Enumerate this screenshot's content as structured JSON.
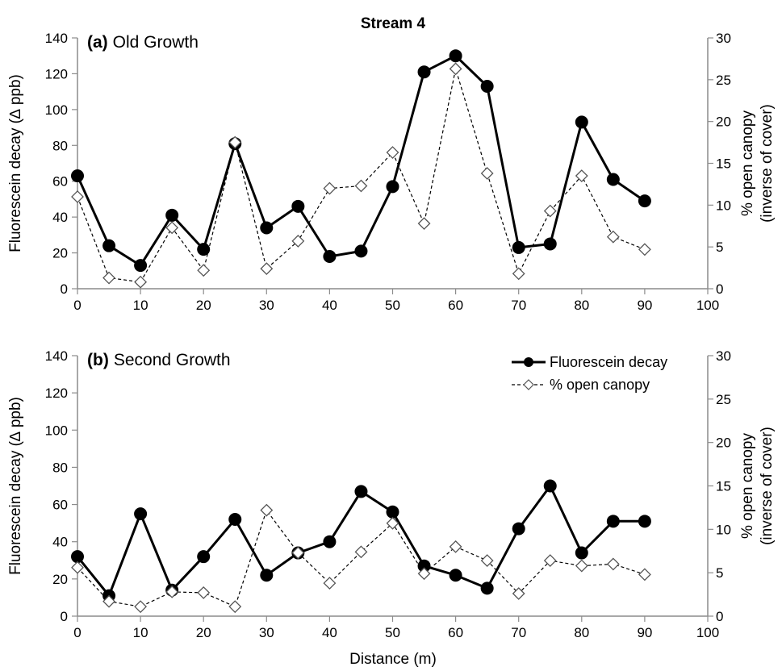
{
  "title": "Stream 4",
  "xlabel": "Distance (m)",
  "chart_data": [
    {
      "type": "line",
      "panel_letter": "(a)",
      "panel_title": "Old Growth",
      "x": [
        0,
        5,
        10,
        15,
        20,
        25,
        30,
        35,
        40,
        45,
        50,
        55,
        60,
        65,
        70,
        75,
        80,
        85,
        90
      ],
      "xlim": [
        0,
        100
      ],
      "xticks": [
        0,
        10,
        20,
        30,
        40,
        50,
        60,
        70,
        80,
        90,
        100
      ],
      "ylabel_left": "Fluorescein decay (∆ ppb)",
      "ylim_left": [
        0,
        140
      ],
      "yticks_left": [
        0,
        20,
        40,
        60,
        80,
        100,
        120,
        140
      ],
      "ylabel_right": [
        "% open canopy",
        "(inverse of cover)"
      ],
      "ylim_right": [
        0,
        30
      ],
      "yticks_right": [
        0,
        5,
        10,
        15,
        20,
        25,
        30
      ],
      "series": [
        {
          "name": "Fluorescein decay",
          "axis": "left",
          "style": "solid",
          "marker": "filled-circle",
          "values": [
            63,
            24,
            13,
            41,
            22,
            81,
            34,
            46,
            18,
            21,
            57,
            121,
            130,
            113,
            23,
            25,
            93,
            61,
            49
          ]
        },
        {
          "name": "% open canopy",
          "axis": "right",
          "style": "dashed",
          "marker": "open-diamond",
          "values": [
            11,
            1.3,
            0.8,
            7.3,
            2.2,
            17.5,
            2.4,
            5.7,
            12,
            12.3,
            16.3,
            7.8,
            26.3,
            13.8,
            1.8,
            9.3,
            13.5,
            6.2,
            4.7
          ]
        }
      ],
      "legend": false,
      "grid": false
    },
    {
      "type": "line",
      "panel_letter": "(b)",
      "panel_title": "Second Growth",
      "x": [
        0,
        5,
        10,
        15,
        20,
        25,
        30,
        35,
        40,
        45,
        50,
        55,
        60,
        65,
        70,
        75,
        80,
        85,
        90
      ],
      "xlim": [
        0,
        100
      ],
      "xticks": [
        0,
        10,
        20,
        30,
        40,
        50,
        60,
        70,
        80,
        90,
        100
      ],
      "ylabel_left": "Fluorescein decay (∆ ppb)",
      "ylim_left": [
        0,
        140
      ],
      "yticks_left": [
        0,
        20,
        40,
        60,
        80,
        100,
        120,
        140
      ],
      "ylabel_right": [
        "% open canopy",
        "(inverse of cover)"
      ],
      "ylim_right": [
        0,
        30
      ],
      "yticks_right": [
        0,
        5,
        10,
        15,
        20,
        25,
        30
      ],
      "series": [
        {
          "name": "Fluorescein decay",
          "axis": "left",
          "style": "solid",
          "marker": "filled-circle",
          "values": [
            32,
            11,
            55,
            14,
            32,
            52,
            22,
            34,
            40,
            67,
            56,
            27,
            22,
            15,
            47,
            70,
            34,
            51,
            51
          ]
        },
        {
          "name": "% open canopy",
          "axis": "right",
          "style": "dashed",
          "marker": "open-diamond",
          "values": [
            5.6,
            1.7,
            1.1,
            2.8,
            2.7,
            1.1,
            12.2,
            7.3,
            3.8,
            7.4,
            10.7,
            4.9,
            8,
            6.4,
            2.6,
            6.4,
            5.8,
            6,
            4.8
          ]
        }
      ],
      "legend": true,
      "legend_position": "top-right",
      "grid": false
    }
  ]
}
